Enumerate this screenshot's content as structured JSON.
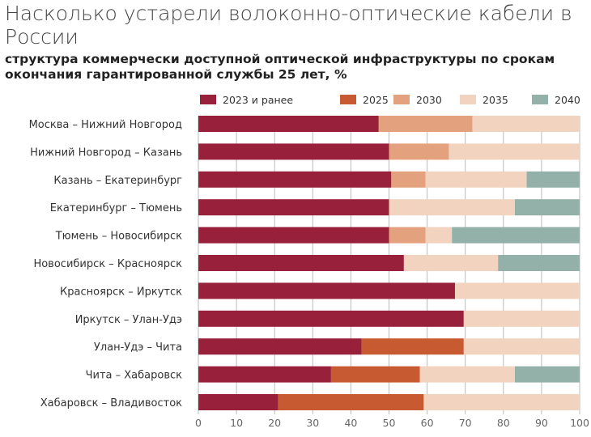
{
  "chart_data": {
    "type": "bar",
    "orientation": "horizontal-stacked",
    "title": "Насколько устарели волоконно-оптические кабели в России",
    "subtitle": "структура коммерчески доступной оптической инфраструктуры по срокам окончания гарантированной службы 25 лет, %",
    "categories": [
      "Москва – Нижний Новгород",
      "Нижний Новгород – Казань",
      "Казань – Екатеринбург",
      "Екатеринбург – Тюмень",
      "Тюмень – Новосибирск",
      "Новосибирск – Красноярск",
      "Красноярск – Иркутск",
      "Иркутск – Улан-Удэ",
      "Улан-Удэ – Чита",
      "Чита – Хабаровск",
      "Хабаровск – Владивосток"
    ],
    "series": [
      {
        "name": "2023 и ранее",
        "color": "#98203a",
        "values": [
          47.3,
          50,
          50.6,
          50,
          50,
          53.9,
          67.3,
          69.6,
          42.8,
          34.8,
          20.9
        ]
      },
      {
        "name": "2025",
        "color": "#c85a32",
        "values": [
          0,
          0,
          0,
          0,
          0,
          0,
          0,
          0,
          26.8,
          23.3,
          38.2
        ]
      },
      {
        "name": "2030",
        "color": "#e3a27d",
        "values": [
          24.6,
          15.7,
          9,
          0,
          9.6,
          0,
          0,
          0,
          0,
          0,
          0
        ]
      },
      {
        "name": "2035",
        "color": "#f2d3bf",
        "values": [
          28.1,
          34.3,
          26.5,
          33,
          6.9,
          24.7,
          32.7,
          30.4,
          30.4,
          24.9,
          40.9
        ]
      },
      {
        "name": "2040",
        "color": "#93b1a9",
        "values": [
          0,
          0,
          13.9,
          17,
          33.5,
          21.4,
          0,
          0,
          0,
          17,
          0
        ]
      }
    ],
    "xlim": [
      0,
      100
    ],
    "xticks": [
      "0",
      "10",
      "20",
      "30",
      "40",
      "50",
      "60",
      "70",
      "80",
      "90",
      "100"
    ],
    "grid": true,
    "legend": "top"
  }
}
